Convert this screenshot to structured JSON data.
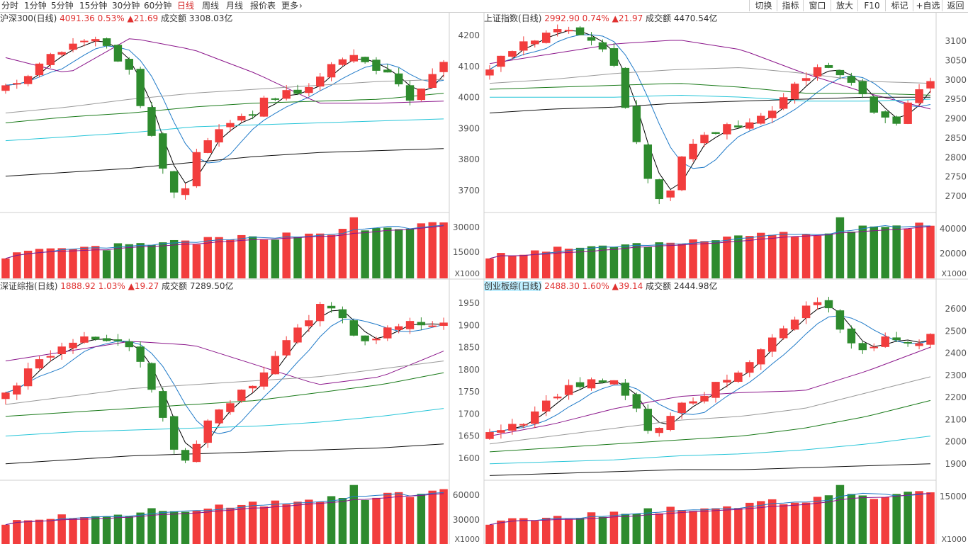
{
  "toolbar": {
    "periods": [
      {
        "label": "分时",
        "active": false
      },
      {
        "label": "1分钟",
        "active": false
      },
      {
        "label": "5分钟",
        "active": false
      },
      {
        "label": "15分钟",
        "active": false
      },
      {
        "label": "30分钟",
        "active": false
      },
      {
        "label": "60分钟",
        "active": false
      },
      {
        "label": "日线",
        "active": true
      },
      {
        "label": "周线",
        "active": false
      },
      {
        "label": "月线",
        "active": false
      },
      {
        "label": "报价表",
        "active": false
      },
      {
        "label": "更多",
        "active": false
      }
    ],
    "right_buttons": [
      "切换",
      "指标",
      "窗口",
      "放大",
      "F10",
      "标记",
      "+自选",
      "返回"
    ]
  },
  "colors": {
    "up": "#f23d3d",
    "down": "#2e8b2e",
    "ma5": "#000000",
    "ma10": "#1f7ac8",
    "ma20": "#8b168b",
    "ma30": "#999999",
    "ma60": "#1a7a1a",
    "ma120": "#27c5d8",
    "ma250": "#111111"
  },
  "panels": [
    {
      "name": "沪深300",
      "suffix": "(日线)",
      "price": "4091.36",
      "pct": "0.53%",
      "change": "▲21.69",
      "amount_label": "成交额",
      "amount": "3308.03亿",
      "highlight": false,
      "y_ticks": [],
      "vol_ticks": [],
      "vol_unit": ""
    },
    {
      "name": "上证指数",
      "suffix": "(日线)",
      "price": "2992.90",
      "pct": "0.74%",
      "change": "▲21.97",
      "amount_label": "成交额",
      "amount": "4470.54亿",
      "highlight": false,
      "y_ticks": [
        "4200",
        "4100",
        "4000",
        "3900",
        "3800",
        "3700"
      ],
      "right_ticks": [
        "3100",
        "3050",
        "3000",
        "2950",
        "2900",
        "2850",
        "2800",
        "2750",
        "2700"
      ],
      "vol_ticks": [
        "30000",
        "15000"
      ],
      "right_vol_ticks": [
        "40000",
        "20000"
      ],
      "vol_unit": "X1000"
    },
    {
      "name": "深证综指",
      "suffix": "(日线)",
      "price": "1888.92",
      "pct": "1.03%",
      "change": "▲19.27",
      "amount_label": "成交额",
      "amount": "7289.50亿",
      "highlight": false,
      "y_ticks": [],
      "vol_ticks": [],
      "vol_unit": ""
    },
    {
      "name": "创业板综",
      "suffix": "(日线)",
      "price": "2488.30",
      "pct": "1.60%",
      "change": "▲39.14",
      "amount_label": "成交额",
      "amount": "2444.98亿",
      "highlight": true,
      "y_ticks": [
        "1950",
        "1900",
        "1850",
        "1800",
        "1750",
        "1700",
        "1650",
        "1600"
      ],
      "right_ticks": [
        "2600",
        "2500",
        "2400",
        "2300",
        "2200",
        "2100",
        "2000",
        "1900"
      ],
      "vol_ticks": [
        "60000",
        "30000"
      ],
      "right_vol_ticks": [
        "15000"
      ],
      "vol_unit": "X1000"
    }
  ]
}
